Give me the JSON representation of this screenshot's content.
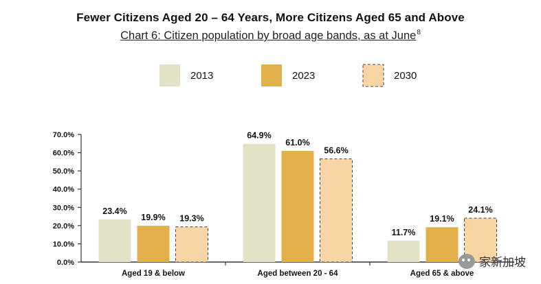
{
  "chart_data": {
    "type": "bar",
    "title": "Fewer Citizens Aged 20 – 64 Years, More Citizens Aged 65 and Above",
    "subtitle": "Chart 6: Citizen population by broad age bands, as at June",
    "subtitle_footnote": "8",
    "categories": [
      "Aged 19 & below",
      "Aged between 20 - 64",
      "Aged 65 & above"
    ],
    "series": [
      {
        "name": "2013",
        "values": [
          23.4,
          64.9,
          11.7
        ],
        "labels": [
          "23.4%",
          "64.9%",
          "11.7%"
        ],
        "color": "#e3e1c6",
        "dashed": false
      },
      {
        "name": "2023",
        "values": [
          19.9,
          61.0,
          19.1
        ],
        "labels": [
          "19.9%",
          "61.0%",
          "19.1%"
        ],
        "color": "#e2b04a",
        "dashed": false
      },
      {
        "name": "2030",
        "values": [
          19.3,
          56.6,
          24.1
        ],
        "labels": [
          "19.3%",
          "56.6%",
          "24.1%"
        ],
        "color": "#f7d5a4",
        "dashed": true
      }
    ],
    "yticks": [
      "0.0%",
      "10.0%",
      "20.0%",
      "30.0%",
      "40.0%",
      "50.0%",
      "60.0%",
      "70.0%"
    ],
    "ylim": [
      0,
      70
    ],
    "grid": false,
    "legend_position": "top"
  },
  "watermark": "家新加坡"
}
